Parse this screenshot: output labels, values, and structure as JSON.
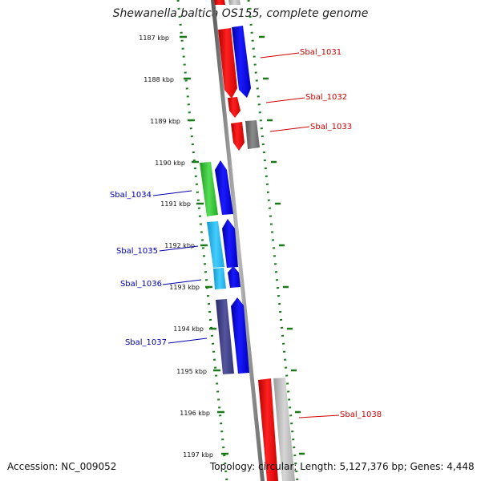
{
  "title": "Shewanella baltica OS155, complete genome",
  "footer": {
    "accession": "Accession: NC_009052",
    "topology": "Topology: circular; Length: 5,127,376 bp; Genes: 4,448"
  },
  "ticks": [
    "1187 kbp",
    "1188 kbp",
    "1189 kbp",
    "1190 kbp",
    "1191 kbp",
    "1192 kbp",
    "1193 kbp",
    "1194 kbp",
    "1195 kbp",
    "1196 kbp",
    "1197 kbp"
  ],
  "gene_labels_forward": [
    "Sbal_1031",
    "Sbal_1032",
    "Sbal_1033",
    "Sbal_1038"
  ],
  "gene_labels_reverse": [
    "Sbal_1034",
    "Sbal_1035",
    "Sbal_1036",
    "Sbal_1037"
  ],
  "colors": {
    "backbone": "#7a7a7a",
    "ticks": "#1a7a1a",
    "forward_label": "#cc0000",
    "reverse_label": "#0000aa",
    "red": "#ee0000",
    "blue": "#0000ee",
    "grey": "#777777",
    "green": "#33cc33",
    "cyan": "#22bbee",
    "navy": "#333377"
  }
}
